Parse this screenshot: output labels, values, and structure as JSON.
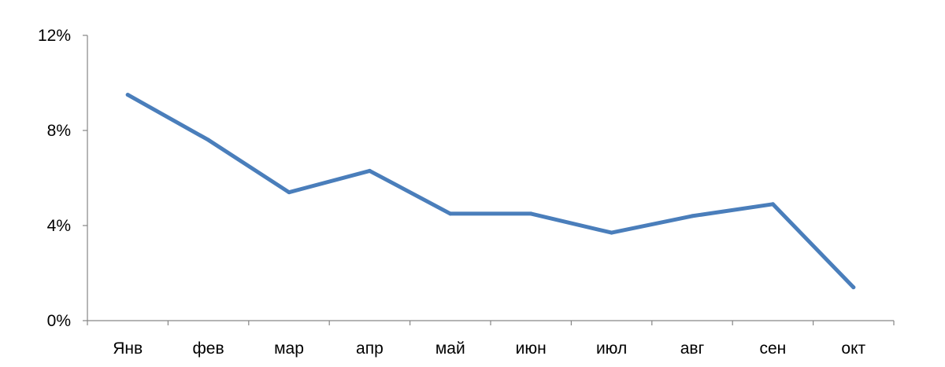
{
  "chart_data": {
    "type": "line",
    "title": "",
    "xlabel": "",
    "ylabel": "",
    "categories": [
      "Янв",
      "фев",
      "мар",
      "апр",
      "май",
      "июн",
      "июл",
      "авг",
      "сен",
      "окт"
    ],
    "series": [
      {
        "values": [
          9.5,
          7.6,
          5.4,
          6.3,
          4.5,
          4.5,
          3.7,
          4.4,
          4.9,
          1.4
        ],
        "color": "#4a7ebb"
      }
    ],
    "ylim": [
      0,
      12
    ],
    "yticks": [
      0,
      4,
      8,
      12
    ],
    "ytick_labels": [
      "0%",
      "4%",
      "8%",
      "12%"
    ],
    "grid": false,
    "legend": "none"
  }
}
